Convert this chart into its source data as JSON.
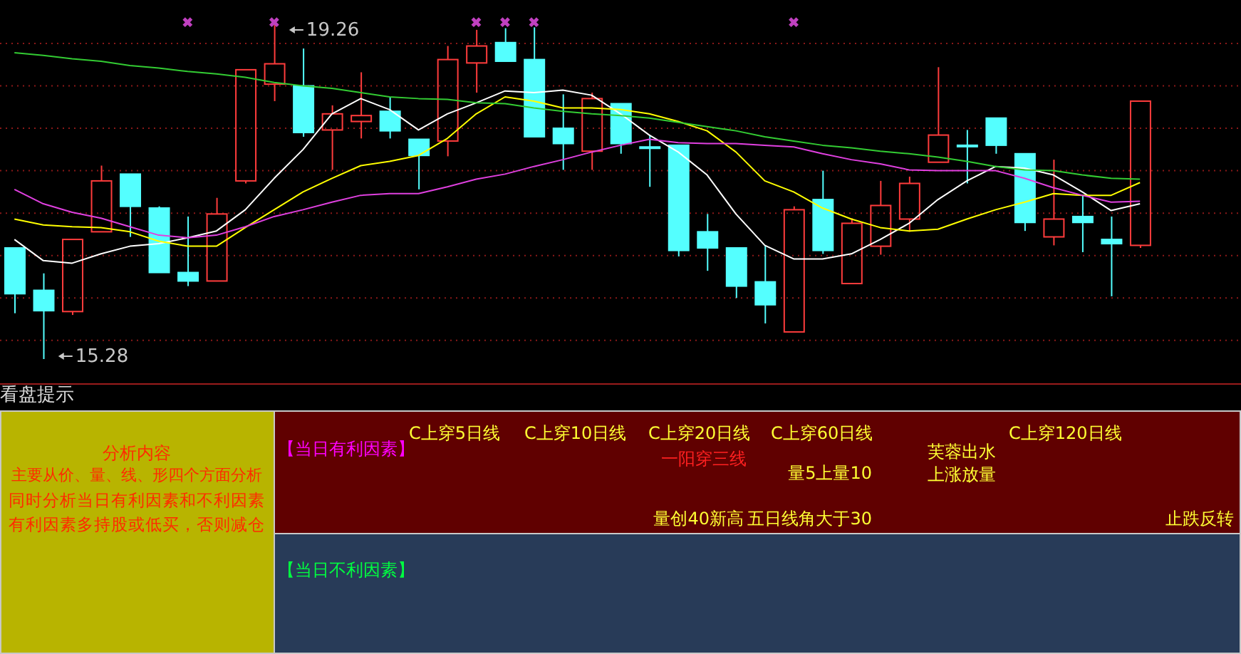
{
  "chart_data": [
    {
      "type": "candlestick",
      "categories": [
        null,
        null,
        null,
        null,
        null,
        null,
        null,
        null,
        null,
        null,
        null,
        null,
        null,
        null,
        null,
        null,
        null,
        null,
        null,
        null,
        null,
        null,
        null,
        null,
        null,
        null,
        null,
        null,
        null,
        null,
        null,
        null,
        null,
        null,
        null,
        null,
        null,
        null,
        null,
        null,
        null,
        null,
        null
      ],
      "ohlc": [
        [
          16.59,
          16.59,
          15.82,
          16.05
        ],
        [
          16.09,
          16.29,
          15.28,
          15.85
        ],
        [
          15.84,
          16.69,
          15.8,
          16.69
        ],
        [
          16.78,
          17.56,
          16.78,
          17.38
        ],
        [
          17.46,
          17.46,
          16.72,
          17.08
        ],
        [
          17.06,
          17.08,
          16.3,
          16.3
        ],
        [
          16.3,
          16.96,
          16.14,
          16.2
        ],
        [
          16.2,
          17.18,
          16.2,
          16.99
        ],
        [
          17.38,
          18.69,
          17.35,
          18.69
        ],
        [
          18.52,
          19.26,
          18.32,
          18.76
        ],
        [
          18.5,
          18.94,
          17.9,
          17.95
        ],
        [
          17.98,
          18.27,
          17.51,
          18.17
        ],
        [
          18.08,
          18.66,
          17.88,
          18.15
        ],
        [
          18.2,
          18.37,
          17.88,
          17.97
        ],
        [
          17.87,
          17.87,
          17.28,
          17.68
        ],
        [
          17.85,
          18.97,
          17.67,
          18.81
        ],
        [
          18.77,
          19.16,
          18.42,
          18.97
        ],
        [
          19.01,
          19.18,
          18.79,
          18.79
        ],
        [
          18.81,
          19.19,
          17.9,
          17.9
        ],
        [
          18.0,
          18.4,
          17.51,
          17.82
        ],
        [
          17.73,
          18.42,
          17.51,
          18.35
        ],
        [
          18.29,
          18.29,
          17.7,
          17.82
        ],
        [
          17.78,
          17.92,
          17.31,
          17.78
        ],
        [
          17.8,
          17.8,
          16.49,
          16.56
        ],
        [
          16.78,
          16.99,
          16.32,
          16.59
        ],
        [
          16.59,
          16.59,
          16.0,
          16.14
        ],
        [
          16.19,
          16.62,
          15.7,
          15.92
        ],
        [
          15.6,
          17.08,
          15.6,
          17.04
        ],
        [
          17.16,
          17.5,
          16.52,
          16.56
        ],
        [
          16.17,
          16.94,
          16.17,
          16.88
        ],
        [
          16.61,
          17.38,
          16.51,
          17.09
        ],
        [
          16.93,
          17.43,
          16.78,
          17.35
        ],
        [
          17.6,
          18.72,
          17.6,
          17.92
        ],
        [
          17.8,
          17.98,
          17.35,
          17.8
        ],
        [
          18.12,
          18.12,
          17.7,
          17.8
        ],
        [
          17.7,
          17.7,
          16.79,
          16.89
        ],
        [
          16.72,
          17.63,
          16.62,
          16.93
        ],
        [
          16.96,
          17.21,
          16.54,
          16.89
        ],
        [
          16.69,
          16.96,
          16.02,
          16.64
        ],
        [
          16.62,
          18.32,
          16.59,
          18.32
        ],
        null,
        null,
        null
      ],
      "colors": [
        "#54ffff",
        "#54ffff",
        "#ff3c3c",
        "#ff3c3c",
        "#54ffff",
        "#54ffff",
        "#54ffff",
        "#ff3c3c",
        "#ff3c3c",
        "#ff3c3c",
        "#54ffff",
        "#ff3c3c",
        "#ff3c3c",
        "#54ffff",
        "#54ffff",
        "#ff3c3c",
        "#ff3c3c",
        "#54ffff",
        "#54ffff",
        "#54ffff",
        "#ff3c3c",
        "#54ffff",
        "#54ffff",
        "#54ffff",
        "#54ffff",
        "#54ffff",
        "#54ffff",
        "#ff3c3c",
        "#54ffff",
        "#ff3c3c",
        "#ff3c3c",
        "#ff3c3c",
        "#ff3c3c",
        "#54ffff",
        "#54ffff",
        "#54ffff",
        "#ff3c3c",
        "#54ffff",
        "#54ffff",
        "#ff3c3c",
        null,
        null,
        null
      ],
      "series": [
        {
          "type": "line",
          "color": "#ffffff",
          "values": [
            16.69,
            16.44,
            16.41,
            16.52,
            16.61,
            16.64,
            16.71,
            16.79,
            17.04,
            17.41,
            17.75,
            18.17,
            18.35,
            18.22,
            17.98,
            18.17,
            18.3,
            18.44,
            18.42,
            18.45,
            18.39,
            18.17,
            17.92,
            17.72,
            17.45,
            16.99,
            16.62,
            16.46,
            16.46,
            16.52,
            16.69,
            16.88,
            17.16,
            17.38,
            17.55,
            17.53,
            17.45,
            17.25,
            17.03,
            17.11,
            null,
            null,
            null
          ]
        },
        {
          "type": "line",
          "color": "#ffff00",
          "values": [
            16.93,
            16.86,
            16.84,
            16.83,
            16.78,
            16.67,
            16.61,
            16.61,
            16.83,
            17.04,
            17.25,
            17.41,
            17.56,
            17.61,
            17.68,
            17.88,
            18.17,
            18.37,
            18.32,
            18.24,
            18.24,
            18.22,
            18.17,
            18.08,
            17.97,
            17.72,
            17.38,
            17.25,
            17.06,
            16.93,
            16.83,
            16.79,
            16.81,
            16.93,
            17.04,
            17.13,
            17.23,
            17.21,
            17.21,
            17.36,
            null,
            null,
            null
          ]
        },
        {
          "type": "line",
          "color": "#e040e0",
          "values": [
            17.28,
            17.11,
            17.01,
            16.94,
            16.84,
            16.74,
            16.71,
            16.74,
            16.84,
            16.96,
            17.04,
            17.13,
            17.21,
            17.23,
            17.23,
            17.31,
            17.4,
            17.46,
            17.55,
            17.63,
            17.72,
            17.8,
            17.87,
            17.83,
            17.82,
            17.82,
            17.8,
            17.78,
            17.7,
            17.63,
            17.58,
            17.51,
            17.5,
            17.5,
            17.5,
            17.41,
            17.3,
            17.21,
            17.13,
            17.14,
            null,
            null,
            null
          ]
        },
        {
          "type": "line",
          "color": "#33cc33",
          "values": [
            18.89,
            18.86,
            18.82,
            18.79,
            18.74,
            18.71,
            18.67,
            18.64,
            18.6,
            18.54,
            18.5,
            18.47,
            18.42,
            18.37,
            18.35,
            18.34,
            18.3,
            18.29,
            18.24,
            18.2,
            18.17,
            18.15,
            18.12,
            18.07,
            18.02,
            17.97,
            17.9,
            17.85,
            17.8,
            17.77,
            17.73,
            17.7,
            17.66,
            17.61,
            17.55,
            17.51,
            17.5,
            17.45,
            17.41,
            17.4,
            null,
            null,
            null
          ]
        },
        {
          "type": "scatter",
          "color": "#c040c0",
          "marker": "cross",
          "values": [
            null,
            null,
            null,
            null,
            null,
            null,
            19.25,
            null,
            null,
            19.25,
            null,
            null,
            null,
            null,
            null,
            null,
            19.25,
            19.25,
            19.25,
            null,
            null,
            null,
            null,
            null,
            null,
            null,
            null,
            19.25,
            null,
            null,
            null,
            null,
            null,
            null,
            null,
            null,
            null,
            null,
            null,
            null,
            null,
            null,
            null
          ]
        }
      ],
      "yticks": [
        {
          "value": 15.5,
          "label": null
        },
        {
          "value": 16.0,
          "label": null
        },
        {
          "value": 16.5,
          "label": null
        },
        {
          "value": 17.0,
          "label": null
        },
        {
          "value": 17.5,
          "label": null
        },
        {
          "value": 18.0,
          "label": null
        },
        {
          "value": 18.5,
          "label": null
        },
        {
          "value": 19.0,
          "label": null
        }
      ],
      "grid": "y",
      "tick_labels": false,
      "annotations": [
        "19.26",
        "15.28"
      ]
    },
    {
      "type": "other",
      "title": "看盘提示",
      "annotations": [
        "分析内容",
        "主要从价、量、线、形四个方面分析",
        "同时分析当日有利因素和不利因素",
        "有利因素多持股或低买，否则减仓",
        "【当日有利因素】",
        "C上穿5日线",
        "C上穿10日线",
        "C上穿20日线",
        "C上穿60日线",
        "C上穿120日线",
        "一阳穿三线",
        "量5上量10",
        "芙蓉出水",
        "上涨放量",
        "量创40新高",
        "五日线角大于30",
        "止跌反转",
        "【当日不利因素】"
      ]
    }
  ]
}
